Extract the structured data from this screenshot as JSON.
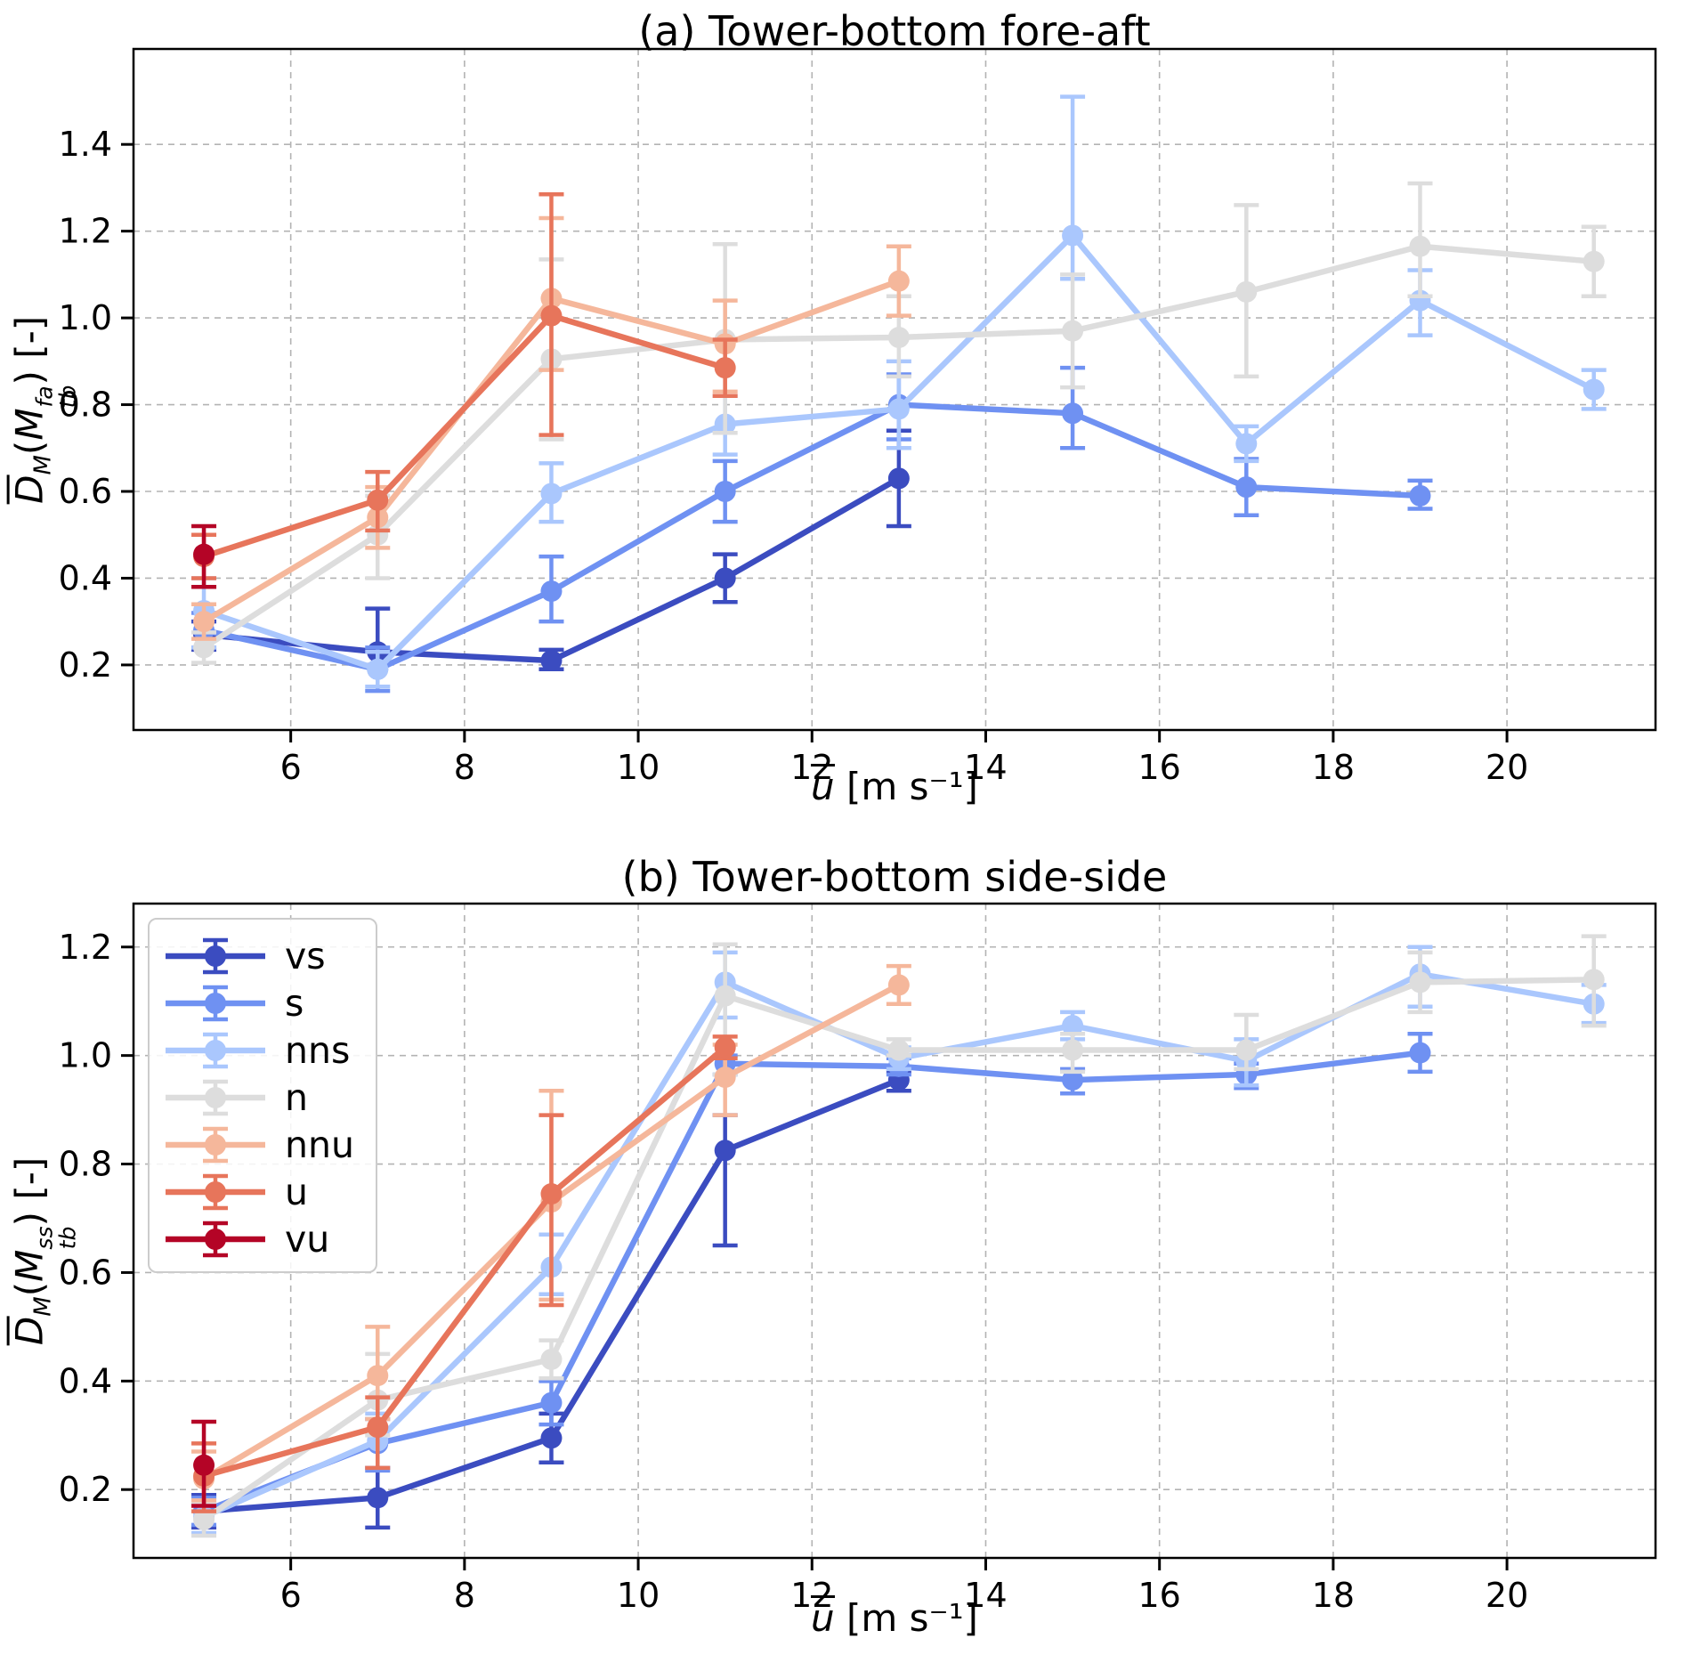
{
  "figure": {
    "xlabel_bar": "u",
    "xlabel_unit": "[m s⁻¹]"
  },
  "legend": {
    "entries": [
      "vs",
      "s",
      "nns",
      "n",
      "nnu",
      "u",
      "vu"
    ]
  },
  "chart_data": [
    {
      "id": "a",
      "type": "line",
      "title": "(a) Tower-bottom fore-aft",
      "xlabel": "u [m s⁻¹]",
      "ylabel": {
        "D": "D",
        "Dsub": "M",
        "open": "(",
        "M": "M",
        "sup": "fa",
        "sub": "tb",
        "close": ")",
        "unit": "[-]"
      },
      "xlim": [
        4.19,
        21.71
      ],
      "ylim": [
        0.05,
        1.62
      ],
      "xticks": [
        6,
        8,
        10,
        12,
        14,
        16,
        18,
        20
      ],
      "yticks": [
        0.2,
        0.4,
        0.6,
        0.8,
        1.0,
        1.2,
        1.4
      ],
      "grid": true,
      "legend_position": "none",
      "series": [
        {
          "name": "vs",
          "color": "#3b4cc0",
          "x": [
            5,
            7,
            9,
            11,
            13
          ],
          "y": [
            0.27,
            0.23,
            0.21,
            0.4,
            0.63
          ],
          "lo": [
            0.235,
            0.2,
            0.19,
            0.345,
            0.52
          ],
          "hi": [
            0.3,
            0.33,
            0.235,
            0.455,
            0.74
          ]
        },
        {
          "name": "s",
          "color": "#6f91f2",
          "x": [
            5,
            7,
            9,
            11,
            13,
            15,
            17,
            19
          ],
          "y": [
            0.28,
            0.19,
            0.37,
            0.6,
            0.8,
            0.78,
            0.61,
            0.59
          ],
          "lo": [
            0.24,
            0.14,
            0.3,
            0.53,
            0.72,
            0.7,
            0.545,
            0.56
          ],
          "hi": [
            0.32,
            0.24,
            0.45,
            0.67,
            0.87,
            0.885,
            0.675,
            0.625
          ]
        },
        {
          "name": "nns",
          "color": "#aac7fd",
          "x": [
            5,
            7,
            9,
            11,
            13,
            15,
            17,
            19,
            21
          ],
          "y": [
            0.325,
            0.19,
            0.595,
            0.755,
            0.79,
            1.19,
            0.71,
            1.04,
            0.835
          ],
          "lo": [
            0.24,
            0.15,
            0.53,
            0.685,
            0.7,
            1.09,
            0.67,
            0.96,
            0.79
          ],
          "hi": [
            0.4,
            0.23,
            0.665,
            0.82,
            0.9,
            1.51,
            0.75,
            1.11,
            0.88
          ]
        },
        {
          "name": "n",
          "color": "#dddddd",
          "x": [
            5,
            7,
            9,
            11,
            13,
            15,
            17,
            19,
            21
          ],
          "y": [
            0.24,
            0.5,
            0.905,
            0.95,
            0.955,
            0.97,
            1.06,
            1.165,
            1.13
          ],
          "lo": [
            0.205,
            0.4,
            0.72,
            0.735,
            0.865,
            0.84,
            0.865,
            1.05,
            1.05
          ],
          "hi": [
            0.275,
            0.59,
            1.135,
            1.17,
            1.05,
            1.1,
            1.26,
            1.31,
            1.21
          ]
        },
        {
          "name": "nnu",
          "color": "#f5b79b",
          "x": [
            5,
            7,
            9,
            11,
            13
          ],
          "y": [
            0.3,
            0.54,
            1.045,
            0.94,
            1.085
          ],
          "lo": [
            0.26,
            0.47,
            0.88,
            0.83,
            1.005
          ],
          "hi": [
            0.34,
            0.61,
            1.23,
            1.04,
            1.165
          ]
        },
        {
          "name": "u",
          "color": "#e7755b",
          "x": [
            5,
            7,
            9,
            11
          ],
          "y": [
            0.45,
            0.58,
            1.005,
            0.885
          ],
          "lo": [
            0.4,
            0.51,
            0.73,
            0.82
          ],
          "hi": [
            0.5,
            0.645,
            1.285,
            0.95
          ]
        },
        {
          "name": "vu",
          "color": "#b40426",
          "x": [
            5
          ],
          "y": [
            0.455
          ],
          "lo": [
            0.38
          ],
          "hi": [
            0.52
          ]
        }
      ]
    },
    {
      "id": "b",
      "type": "line",
      "title": "(b) Tower-bottom side-side",
      "xlabel": "u [m s⁻¹]",
      "ylabel": {
        "D": "D",
        "Dsub": "M",
        "open": "(",
        "M": "M",
        "sup": "ss",
        "sub": "tb",
        "close": ")",
        "unit": "[-]"
      },
      "xlim": [
        4.19,
        21.71
      ],
      "ylim": [
        0.074,
        1.28
      ],
      "xticks": [
        6,
        8,
        10,
        12,
        14,
        16,
        18,
        20
      ],
      "yticks": [
        0.2,
        0.4,
        0.6,
        0.8,
        1.0,
        1.2
      ],
      "grid": true,
      "legend_position": "upper-left",
      "series": [
        {
          "name": "vs",
          "color": "#3b4cc0",
          "x": [
            5,
            7,
            9,
            11,
            13
          ],
          "y": [
            0.16,
            0.185,
            0.295,
            0.825,
            0.955
          ],
          "lo": [
            0.13,
            0.13,
            0.25,
            0.65,
            0.935
          ],
          "hi": [
            0.19,
            0.24,
            0.34,
            0.89,
            0.97
          ]
        },
        {
          "name": "s",
          "color": "#6f91f2",
          "x": [
            5,
            7,
            9,
            11,
            13,
            15,
            17,
            19
          ],
          "y": [
            0.16,
            0.285,
            0.36,
            0.985,
            0.98,
            0.955,
            0.965,
            1.005
          ],
          "lo": [
            0.135,
            0.235,
            0.32,
            0.965,
            0.965,
            0.93,
            0.94,
            0.97
          ],
          "hi": [
            0.185,
            0.33,
            0.4,
            1.0,
            0.995,
            0.975,
            0.985,
            1.04
          ]
        },
        {
          "name": "nns",
          "color": "#aac7fd",
          "x": [
            5,
            7,
            9,
            11,
            13,
            15,
            17,
            19,
            21
          ],
          "y": [
            0.15,
            0.29,
            0.61,
            1.135,
            0.995,
            1.055,
            0.99,
            1.15,
            1.095
          ],
          "lo": [
            0.12,
            0.24,
            0.56,
            1.07,
            0.975,
            1.03,
            0.945,
            1.09,
            1.06
          ],
          "hi": [
            0.18,
            0.34,
            0.67,
            1.19,
            1.015,
            1.08,
            1.03,
            1.2,
            1.13
          ]
        },
        {
          "name": "n",
          "color": "#dddddd",
          "x": [
            5,
            7,
            9,
            11,
            13,
            15,
            17,
            19,
            21
          ],
          "y": [
            0.145,
            0.365,
            0.44,
            1.11,
            1.01,
            1.01,
            1.01,
            1.135,
            1.14
          ],
          "lo": [
            0.115,
            0.3,
            0.405,
            0.965,
            1.0,
            0.97,
            0.975,
            1.08,
            1.055
          ],
          "hi": [
            0.175,
            0.45,
            0.475,
            1.205,
            1.03,
            1.04,
            1.075,
            1.19,
            1.22
          ]
        },
        {
          "name": "nnu",
          "color": "#f5b79b",
          "x": [
            5,
            7,
            9,
            11,
            13
          ],
          "y": [
            0.22,
            0.41,
            0.73,
            0.96,
            1.13
          ],
          "lo": [
            0.18,
            0.33,
            0.55,
            0.89,
            1.095
          ],
          "hi": [
            0.27,
            0.5,
            0.935,
            1.02,
            1.165
          ]
        },
        {
          "name": "u",
          "color": "#e7755b",
          "x": [
            5,
            7,
            9,
            11
          ],
          "y": [
            0.225,
            0.315,
            0.745,
            1.015
          ],
          "lo": [
            0.16,
            0.24,
            0.54,
            0.995
          ],
          "hi": [
            0.285,
            0.37,
            0.89,
            1.035
          ]
        },
        {
          "name": "vu",
          "color": "#b40426",
          "x": [
            5
          ],
          "y": [
            0.245
          ],
          "lo": [
            0.17
          ],
          "hi": [
            0.325
          ]
        }
      ]
    }
  ]
}
